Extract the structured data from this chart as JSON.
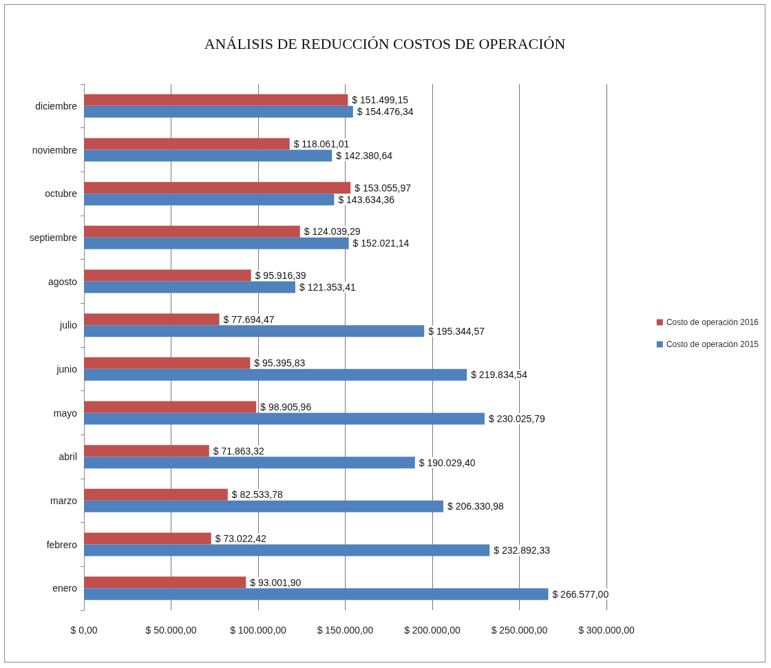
{
  "chart_data": {
    "type": "bar",
    "orientation": "horizontal",
    "title": "ANÁLISIS DE REDUCCIÓN COSTOS DE OPERACIÓN",
    "categories": [
      "diciembre",
      "noviembre",
      "octubre",
      "septiembre",
      "agosto",
      "julio",
      "junio",
      "mayo",
      "abril",
      "marzo",
      "febrero",
      "enero"
    ],
    "series": [
      {
        "name": "Costo de operación 2016",
        "color": "#c0504d",
        "values": [
          151499.15,
          118061.01,
          153055.97,
          124039.29,
          95916.39,
          77694.47,
          95395.83,
          98905.96,
          71863.32,
          82533.78,
          73022.42,
          93001.9
        ],
        "value_labels": [
          "$ 151.499,15",
          "$ 118.061,01",
          "$ 153.055,97",
          "$ 124.039,29",
          "$ 95.916,39",
          "$ 77.694,47",
          "$ 95.395,83",
          "$ 98.905,96",
          "$ 71.863,32",
          "$ 82.533,78",
          "$ 73.022,42",
          "$ 93.001,90"
        ]
      },
      {
        "name": "Costo de operación 2015",
        "color": "#4f81bd",
        "values": [
          154476.34,
          142380.64,
          143634.36,
          152021.14,
          121353.41,
          195344.57,
          219834.54,
          230025.79,
          190029.4,
          206330.98,
          232892.33,
          266577.0
        ],
        "value_labels": [
          "$ 154.476,34",
          "$ 142.380,64",
          "$ 143.634,36",
          "$ 152.021,14",
          "$ 121.353,41",
          "$ 195.344,57",
          "$ 219.834,54",
          "$ 230.025,79",
          "$ 190.029,40",
          "$ 206.330,98",
          "$ 232.892,33",
          "$ 266.577,00"
        ]
      }
    ],
    "xlim": [
      0,
      300000
    ],
    "xticks": [
      {
        "value": 0,
        "label": "$ 0,00"
      },
      {
        "value": 50000,
        "label": "$ 50.000,00"
      },
      {
        "value": 100000,
        "label": "$ 100.000,00"
      },
      {
        "value": 150000,
        "label": "$ 150.000,00"
      },
      {
        "value": 200000,
        "label": "$ 200.000,00"
      },
      {
        "value": 250000,
        "label": "$ 250.000,00"
      },
      {
        "value": 300000,
        "label": "$ 300.000,00"
      }
    ],
    "grid": "x",
    "legend": "right"
  }
}
